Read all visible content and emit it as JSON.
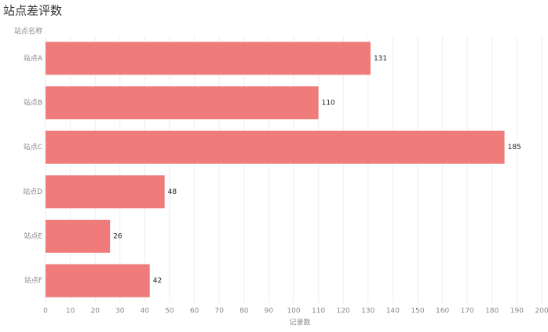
{
  "chart_data": {
    "type": "bar",
    "orientation": "horizontal",
    "title": "站点差评数",
    "y_label": "站点名称",
    "x_label": "记录数",
    "categories": [
      "站点A",
      "站点B",
      "站点C",
      "站点D",
      "站点E",
      "站点F"
    ],
    "values": [
      131,
      110,
      185,
      48,
      26,
      42
    ],
    "color": "#f07b7b",
    "xlim": [
      0,
      200
    ],
    "xticks": [
      0,
      10,
      20,
      30,
      40,
      50,
      60,
      70,
      80,
      90,
      100,
      110,
      120,
      130,
      140,
      150,
      160,
      170,
      180,
      190,
      200
    ],
    "grid": true
  }
}
